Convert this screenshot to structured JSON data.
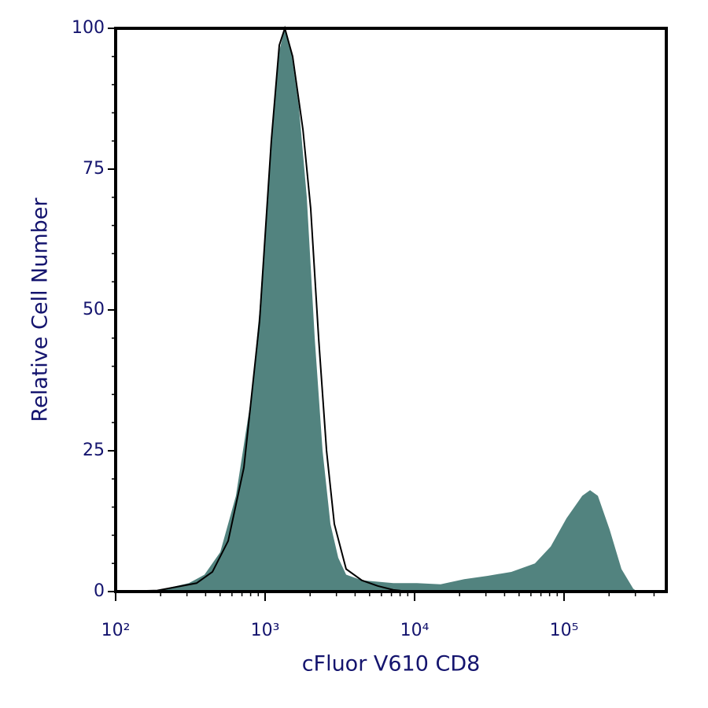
{
  "chart_data": {
    "type": "histogram",
    "x_label": "cFluor V610 CD8",
    "y_label": "Relative Cell Number",
    "xscale": "log",
    "xlim": [
      100,
      483000
    ],
    "ylim": [
      0,
      100
    ],
    "xticks": [
      {
        "value": 100,
        "label": "10²"
      },
      {
        "value": 1000,
        "label": "10³"
      },
      {
        "value": 10000,
        "label": "10⁴"
      },
      {
        "value": 100000,
        "label": "10⁵"
      }
    ],
    "xminorticks": [
      200,
      300,
      400,
      500,
      600,
      700,
      800,
      900,
      2000,
      3000,
      4000,
      5000,
      6000,
      7000,
      8000,
      9000,
      20000,
      30000,
      40000,
      50000,
      60000,
      70000,
      80000,
      90000,
      200000,
      300000,
      400000
    ],
    "yticks": [
      0,
      25,
      50,
      75,
      100
    ],
    "yminorticks": [
      5,
      10,
      15,
      20,
      30,
      35,
      40,
      45,
      55,
      60,
      65,
      70,
      80,
      85,
      90,
      95
    ],
    "series": [
      {
        "style": "area",
        "color": "#52837f",
        "x": [
          104,
          190,
          309,
          393,
          501,
          638,
          813,
          918,
          1100,
          1244,
          1355,
          1492,
          1684,
          1900,
          2147,
          2423,
          2735,
          3085,
          3483,
          4436,
          7210,
          10370,
          14920,
          21470,
          30850,
          44380,
          63800,
          81400,
          103800,
          132300,
          149200,
          168300,
          201800,
          242100,
          290300,
          309000
        ],
        "values": [
          0,
          0.2,
          1.5,
          3,
          7,
          17,
          35,
          50,
          80,
          96,
          100,
          96,
          86,
          70,
          45,
          25,
          12,
          6,
          3,
          2,
          1.5,
          1.5,
          1.3,
          2.2,
          2.8,
          3.5,
          5,
          8,
          13,
          17,
          18,
          17,
          11,
          4,
          0.5,
          0
        ]
      },
      {
        "style": "line",
        "color": "#000000",
        "x": [
          104,
          190,
          348,
          444,
          566,
          721,
          918,
          1100,
          1244,
          1355,
          1528,
          1791,
          2018,
          2280,
          2576,
          2904,
          3483,
          4436,
          5660,
          7210,
          9180
        ],
        "values": [
          0,
          0.2,
          1.5,
          3.5,
          9,
          22,
          48,
          80,
          97,
          100,
          95,
          82,
          68,
          45,
          25,
          12,
          4,
          2,
          1,
          0.3,
          0
        ]
      }
    ]
  }
}
